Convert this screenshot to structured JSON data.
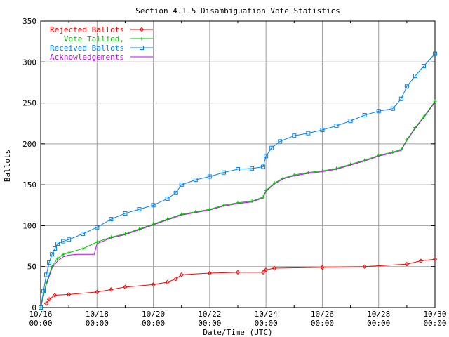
{
  "chart_data": {
    "type": "line",
    "title": "Section 4.1.5 Disambiguation Vote Statistics",
    "xlabel": "Date/Time (UTC)",
    "ylabel": "Ballots",
    "ylim": [
      0,
      350
    ],
    "yticks": [
      "0",
      "50",
      "100",
      "150",
      "200",
      "250",
      "300",
      "350"
    ],
    "xlim": [
      "10/16 00:00",
      "10/30 00:00"
    ],
    "xticks": [
      {
        "date": "10/16",
        "time": "00:00"
      },
      {
        "date": "10/18",
        "time": "00:00"
      },
      {
        "date": "10/20",
        "time": "00:00"
      },
      {
        "date": "10/22",
        "time": "00:00"
      },
      {
        "date": "10/24",
        "time": "00:00"
      },
      {
        "date": "10/26",
        "time": "00:00"
      },
      {
        "date": "10/28",
        "time": "00:00"
      },
      {
        "date": "10/30",
        "time": "00:00"
      }
    ],
    "grid": true,
    "legend_position": "top-left",
    "series": [
      {
        "name": "Rejected Ballots",
        "color": "#ff0000",
        "marker": "diamond",
        "x": [
          "10/16 04:48",
          "10/16 07:12",
          "10/16 12:00",
          "10/17 00:00",
          "10/18 00:00",
          "10/18 12:00",
          "10/19 00:00",
          "10/20 00:00",
          "10/20 12:00",
          "10/20 19:12",
          "10/21 00:00",
          "10/22 00:00",
          "10/23 00:00",
          "10/23 21:36",
          "10/24 00:00",
          "10/24 07:12",
          "10/26 00:00",
          "10/27 12:00",
          "10/29 00:00",
          "10/29 12:00",
          "10/30 00:00"
        ],
        "y": [
          5,
          10,
          15,
          16,
          19,
          22,
          25,
          28,
          31,
          35,
          40,
          42,
          43,
          43,
          46,
          48,
          49,
          50,
          53,
          57,
          59
        ]
      },
      {
        "name": "Vote Tallied,",
        "color": "#00c000",
        "marker": "plus",
        "x": [
          "10/16 00:00",
          "10/16 04:48",
          "10/16 09:36",
          "10/16 14:24",
          "10/16 19:12",
          "10/17 00:00",
          "10/17 12:00",
          "10/18 00:00",
          "10/18 12:00",
          "10/19 00:00",
          "10/19 12:00",
          "10/20 00:00",
          "10/20 12:00",
          "10/21 00:00",
          "10/21 12:00",
          "10/22 00:00",
          "10/22 12:00",
          "10/23 00:00",
          "10/23 12:00",
          "10/23 21:36",
          "10/24 00:00",
          "10/24 07:12",
          "10/24 14:24",
          "10/25 00:00",
          "10/25 12:00",
          "10/26 00:00",
          "10/26 12:00",
          "10/27 00:00",
          "10/27 12:00",
          "10/28 00:00",
          "10/28 12:00",
          "10/28 19:12",
          "10/29 00:00",
          "10/29 07:12",
          "10/29 14:24",
          "10/30 00:00"
        ],
        "y": [
          0,
          30,
          50,
          60,
          65,
          67,
          72,
          80,
          86,
          90,
          96,
          102,
          108,
          114,
          117,
          120,
          125,
          128,
          130,
          135,
          143,
          152,
          158,
          162,
          165,
          167,
          170,
          175,
          180,
          186,
          190,
          193,
          205,
          220,
          233,
          252
        ]
      },
      {
        "name": "Received Ballots",
        "color": "#0080ff",
        "marker": "square",
        "x": [
          "10/16 00:00",
          "10/16 02:24",
          "10/16 04:48",
          "10/16 07:12",
          "10/16 09:36",
          "10/16 12:00",
          "10/16 14:24",
          "10/16 19:12",
          "10/17 00:00",
          "10/17 12:00",
          "10/18 00:00",
          "10/18 12:00",
          "10/19 00:00",
          "10/19 12:00",
          "10/20 00:00",
          "10/20 12:00",
          "10/20 19:12",
          "10/21 00:00",
          "10/21 12:00",
          "10/22 00:00",
          "10/22 12:00",
          "10/23 00:00",
          "10/23 12:00",
          "10/23 21:36",
          "10/24 00:00",
          "10/24 04:48",
          "10/24 12:00",
          "10/25 00:00",
          "10/25 12:00",
          "10/26 00:00",
          "10/26 12:00",
          "10/27 00:00",
          "10/27 12:00",
          "10/28 00:00",
          "10/28 12:00",
          "10/28 19:12",
          "10/29 00:00",
          "10/29 07:12",
          "10/29 14:24",
          "10/30 00:00"
        ],
        "y": [
          0,
          20,
          40,
          55,
          65,
          72,
          78,
          81,
          83,
          90,
          98,
          108,
          115,
          120,
          125,
          133,
          140,
          150,
          156,
          160,
          165,
          169,
          170,
          172,
          185,
          195,
          203,
          210,
          213,
          217,
          222,
          228,
          235,
          240,
          243,
          255,
          270,
          283,
          295,
          310
        ]
      },
      {
        "name": "Acknowledgements",
        "color": "#c000ff",
        "marker": "none",
        "x": [
          "10/16 00:00",
          "10/16 04:48",
          "10/16 09:36",
          "10/16 14:24",
          "10/16 19:12",
          "10/17 00:00",
          "10/17 07:12",
          "10/17 21:36",
          "10/18 00:00",
          "10/18 12:00",
          "10/19 00:00",
          "10/19 12:00",
          "10/20 00:00",
          "10/20 12:00",
          "10/21 00:00",
          "10/21 12:00",
          "10/22 00:00",
          "10/22 12:00",
          "10/23 00:00",
          "10/23 12:00",
          "10/23 21:36",
          "10/24 00:00",
          "10/24 07:12",
          "10/24 14:24",
          "10/25 00:00",
          "10/25 12:00",
          "10/26 00:00",
          "10/26 12:00",
          "10/27 00:00",
          "10/27 12:00",
          "10/28 00:00",
          "10/28 12:00",
          "10/28 19:12",
          "10/29 00:00",
          "10/29 07:12",
          "10/29 14:24",
          "10/30 00:00"
        ],
        "y": [
          0,
          28,
          48,
          57,
          62,
          64,
          65,
          65,
          78,
          85,
          89,
          95,
          101,
          107,
          113,
          116,
          119,
          124,
          127,
          129,
          134,
          142,
          151,
          157,
          161,
          164,
          166,
          169,
          174,
          179,
          185,
          189,
          192,
          204,
          219,
          232,
          251
        ]
      }
    ]
  }
}
